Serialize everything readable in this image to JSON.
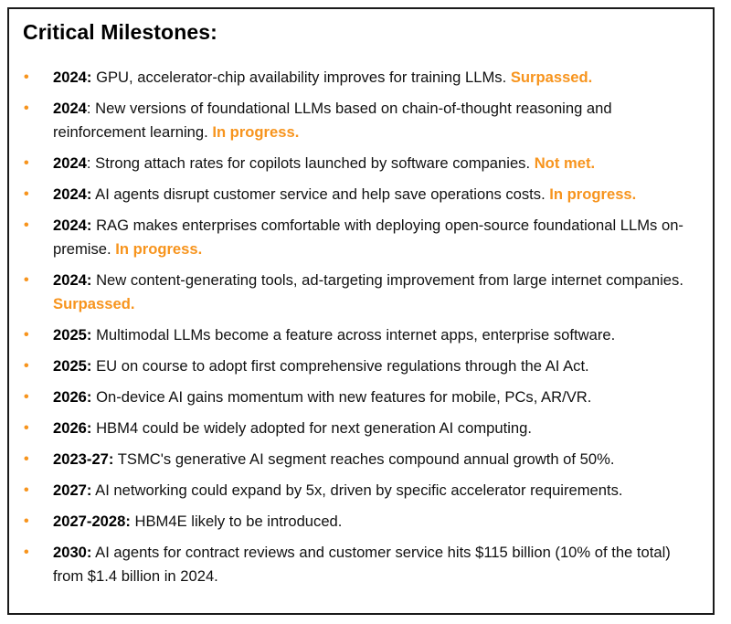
{
  "title": "Critical Milestones:",
  "bullet_char": "•",
  "accent_color": "#f7941d",
  "items": [
    {
      "year": "2024:",
      "text": " GPU, accelerator-chip availability improves for training LLMs. ",
      "status": "Surpassed."
    },
    {
      "year": "2024",
      "text": ": New versions of foundational LLMs based on chain-of-thought reasoning and reinforcement learning. ",
      "status": "In progress."
    },
    {
      "year": "2024",
      "text": ": Strong attach rates for copilots launched by software companies. ",
      "status": "Not met."
    },
    {
      "year": "2024:",
      "text": " AI agents disrupt customer service and help save operations costs. ",
      "status": "In progress."
    },
    {
      "year": "2024:",
      "text": " RAG makes enterprises comfortable with deploying open-source foundational LLMs on-premise. ",
      "status": "In progress."
    },
    {
      "year": "2024:",
      "text": " New content-generating tools, ad-targeting improvement from large internet companies. ",
      "status": "Surpassed."
    },
    {
      "year": "2025:",
      "text": " Multimodal LLMs become a feature across internet apps, enterprise software.",
      "status": ""
    },
    {
      "year": "2025:",
      "text": " EU on course to adopt first comprehensive regulations through the AI Act.",
      "status": ""
    },
    {
      "year": "2026:",
      "text": " On-device AI gains momentum with new features for mobile, PCs, AR/VR.",
      "status": ""
    },
    {
      "year": "2026:",
      "text": " HBM4 could be widely adopted for next generation AI computing.",
      "status": ""
    },
    {
      "year": "2023-27:",
      "text": " TSMC's generative AI segment reaches compound annual growth of 50%.",
      "status": ""
    },
    {
      "year": "2027:",
      "text": " AI networking could expand by 5x, driven by specific accelerator requirements.",
      "status": ""
    },
    {
      "year": "2027-2028:",
      "text": " HBM4E likely to be introduced.",
      "status": ""
    },
    {
      "year": "2030:",
      "text": " AI agents for contract reviews and customer service hits $115 billion (10% of the total) from $1.4 billion in 2024.",
      "status": ""
    }
  ]
}
